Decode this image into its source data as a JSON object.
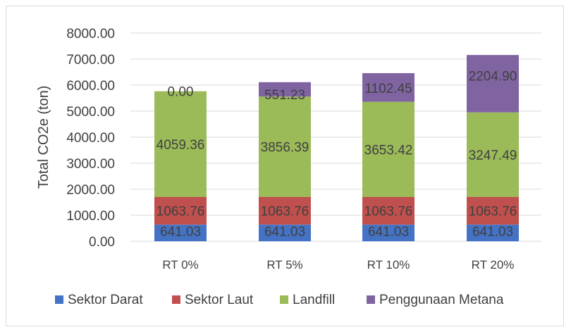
{
  "chart_data": {
    "type": "bar",
    "stacked": true,
    "categories": [
      "RT 0%",
      "RT 5%",
      "RT 10%",
      "RT 20%"
    ],
    "series": [
      {
        "name": "Sektor Darat",
        "color": "#4472c4",
        "values": [
          641.03,
          641.03,
          641.03,
          641.03
        ],
        "labels": [
          "641.03",
          "641.03",
          "641.03",
          "641.03"
        ]
      },
      {
        "name": "Sektor Laut",
        "color": "#c0504d",
        "values": [
          1063.76,
          1063.76,
          1063.76,
          1063.76
        ],
        "labels": [
          "1063.76",
          "1063.76",
          "1063.76",
          "1063.76"
        ]
      },
      {
        "name": "Landfill",
        "color": "#9bbb59",
        "values": [
          4059.36,
          3856.39,
          3653.42,
          3247.49
        ],
        "labels": [
          "4059.36",
          "3856.39",
          "3653.42",
          "3247.49"
        ]
      },
      {
        "name": "Penggunaan Metana",
        "color": "#8064a2",
        "values": [
          0.0,
          551.23,
          1102.45,
          2204.9
        ],
        "labels": [
          "0.00",
          "551.23",
          "1102.45",
          "2204.90"
        ]
      }
    ],
    "ylabel": "Total CO2e (ton)",
    "ylim": [
      0,
      8000
    ],
    "yticks": [
      "0.00",
      "1000.00",
      "2000.00",
      "3000.00",
      "4000.00",
      "5000.00",
      "6000.00",
      "7000.00",
      "8000.00"
    ],
    "grid": true,
    "legend_position": "bottom"
  }
}
